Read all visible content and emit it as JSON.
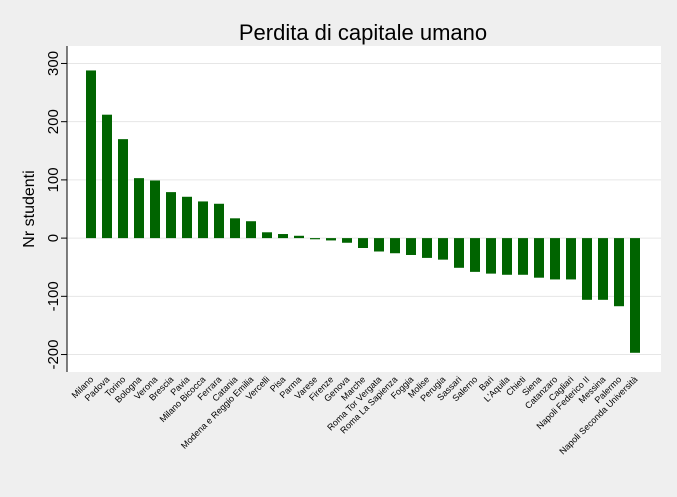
{
  "chart_data": {
    "type": "bar",
    "title": "Perdita di capitale umano",
    "xlabel": "",
    "ylabel": "Nr studenti",
    "ylim": [
      -230,
      330
    ],
    "yticks": [
      -200,
      -100,
      0,
      100,
      200,
      300
    ],
    "grid": true,
    "legend": "none",
    "bar_color": "#006400",
    "categories": [
      "Milano",
      "Padova",
      "Torino",
      "Bologna",
      "Verona",
      "Brescia",
      "Pavia",
      "Milano Bicocca",
      "Ferrara",
      "Catania",
      "Modena e Reggio Emilia",
      "Vercelli",
      "Pisa",
      "Parma",
      "Varese",
      "Firenze",
      "Genova",
      "Marche",
      "Roma Tor Vergata",
      "Roma La Sapienza",
      "Foggia",
      "Molise",
      "Perugia",
      "Sassari",
      "Salerno",
      "Bari",
      "L'Aquila",
      "Chieti",
      "Siena",
      "Catanzaro",
      "Cagliari",
      "Napoli Federico II",
      "Messina",
      "Palermo",
      "Napoli Seconda Università"
    ],
    "values": [
      288,
      212,
      170,
      103,
      99,
      79,
      71,
      63,
      59,
      34,
      29,
      10,
      7,
      4,
      -2,
      -4,
      -8,
      -17,
      -23,
      -26,
      -29,
      -34,
      -37,
      -51,
      -58,
      -61,
      -63,
      -63,
      -68,
      -71,
      -71,
      -106,
      -106,
      -117,
      -197
    ]
  }
}
